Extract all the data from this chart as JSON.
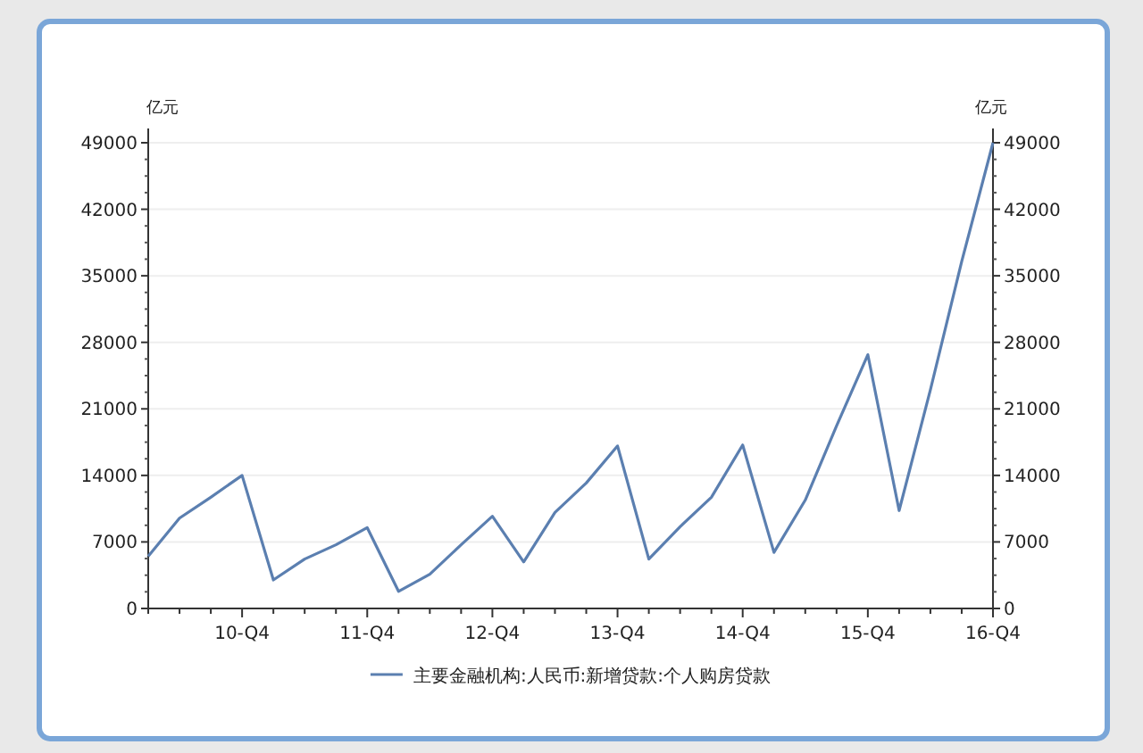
{
  "chart_data": {
    "type": "line",
    "ylabel": "亿元",
    "y2label": "亿元",
    "categories": [
      null,
      null,
      null,
      "10-Q4",
      null,
      null,
      null,
      "11-Q4",
      null,
      null,
      null,
      "12-Q4",
      null,
      null,
      null,
      "13-Q4",
      null,
      null,
      null,
      "14-Q4",
      null,
      null,
      null,
      "15-Q4",
      null,
      null,
      null,
      "16-Q4"
    ],
    "series": [
      {
        "name": "主要金融机构:人民币:新增贷款:个人购房贷款",
        "color": "#5b7fb0",
        "values": [
          5500,
          9500,
          11700,
          14000,
          3000,
          5200,
          6700,
          8500,
          1800,
          3600,
          6700,
          9700,
          4900,
          10100,
          13200,
          17100,
          5200,
          8600,
          11700,
          17200,
          5900,
          11400,
          19200,
          26700,
          10300,
          23000,
          36500,
          49000
        ]
      }
    ],
    "ylim": [
      0,
      50500
    ],
    "yticks": [
      0,
      7000,
      14000,
      21000,
      28000,
      35000,
      42000,
      49000
    ],
    "y2lim": [
      0,
      50500
    ],
    "y2ticks": [
      0,
      7000,
      14000,
      21000,
      28000,
      35000,
      42000,
      49000
    ],
    "grid": "y",
    "legend": "bottom",
    "marker": "none",
    "line_style": "solid"
  }
}
